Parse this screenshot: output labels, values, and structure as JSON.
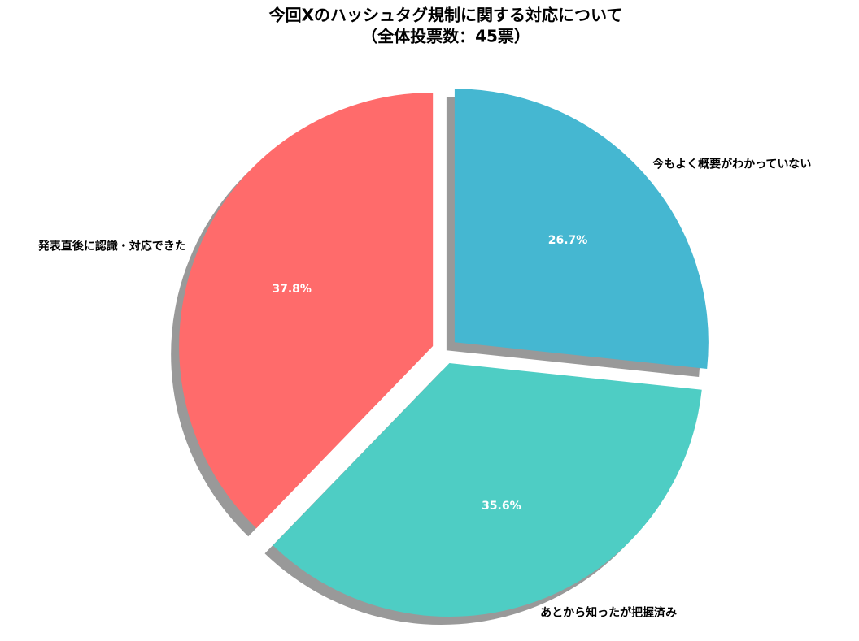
{
  "chart_data": {
    "type": "pie",
    "title": "今回Xのハッシュタグ規制に関する対応について",
    "subtitle": "（全体投票数：45票）",
    "categories": [
      "発表直後に認識・対応できた",
      "あとから知ったが把握済み",
      "今もよく概要がわかっていない"
    ],
    "values": [
      37.8,
      35.6,
      26.7
    ],
    "value_labels": [
      "37.8%",
      "35.6%",
      "26.7%"
    ],
    "colors": [
      "#ff6b6b",
      "#4ecdc4",
      "#45b7d1"
    ],
    "shadow": true
  }
}
